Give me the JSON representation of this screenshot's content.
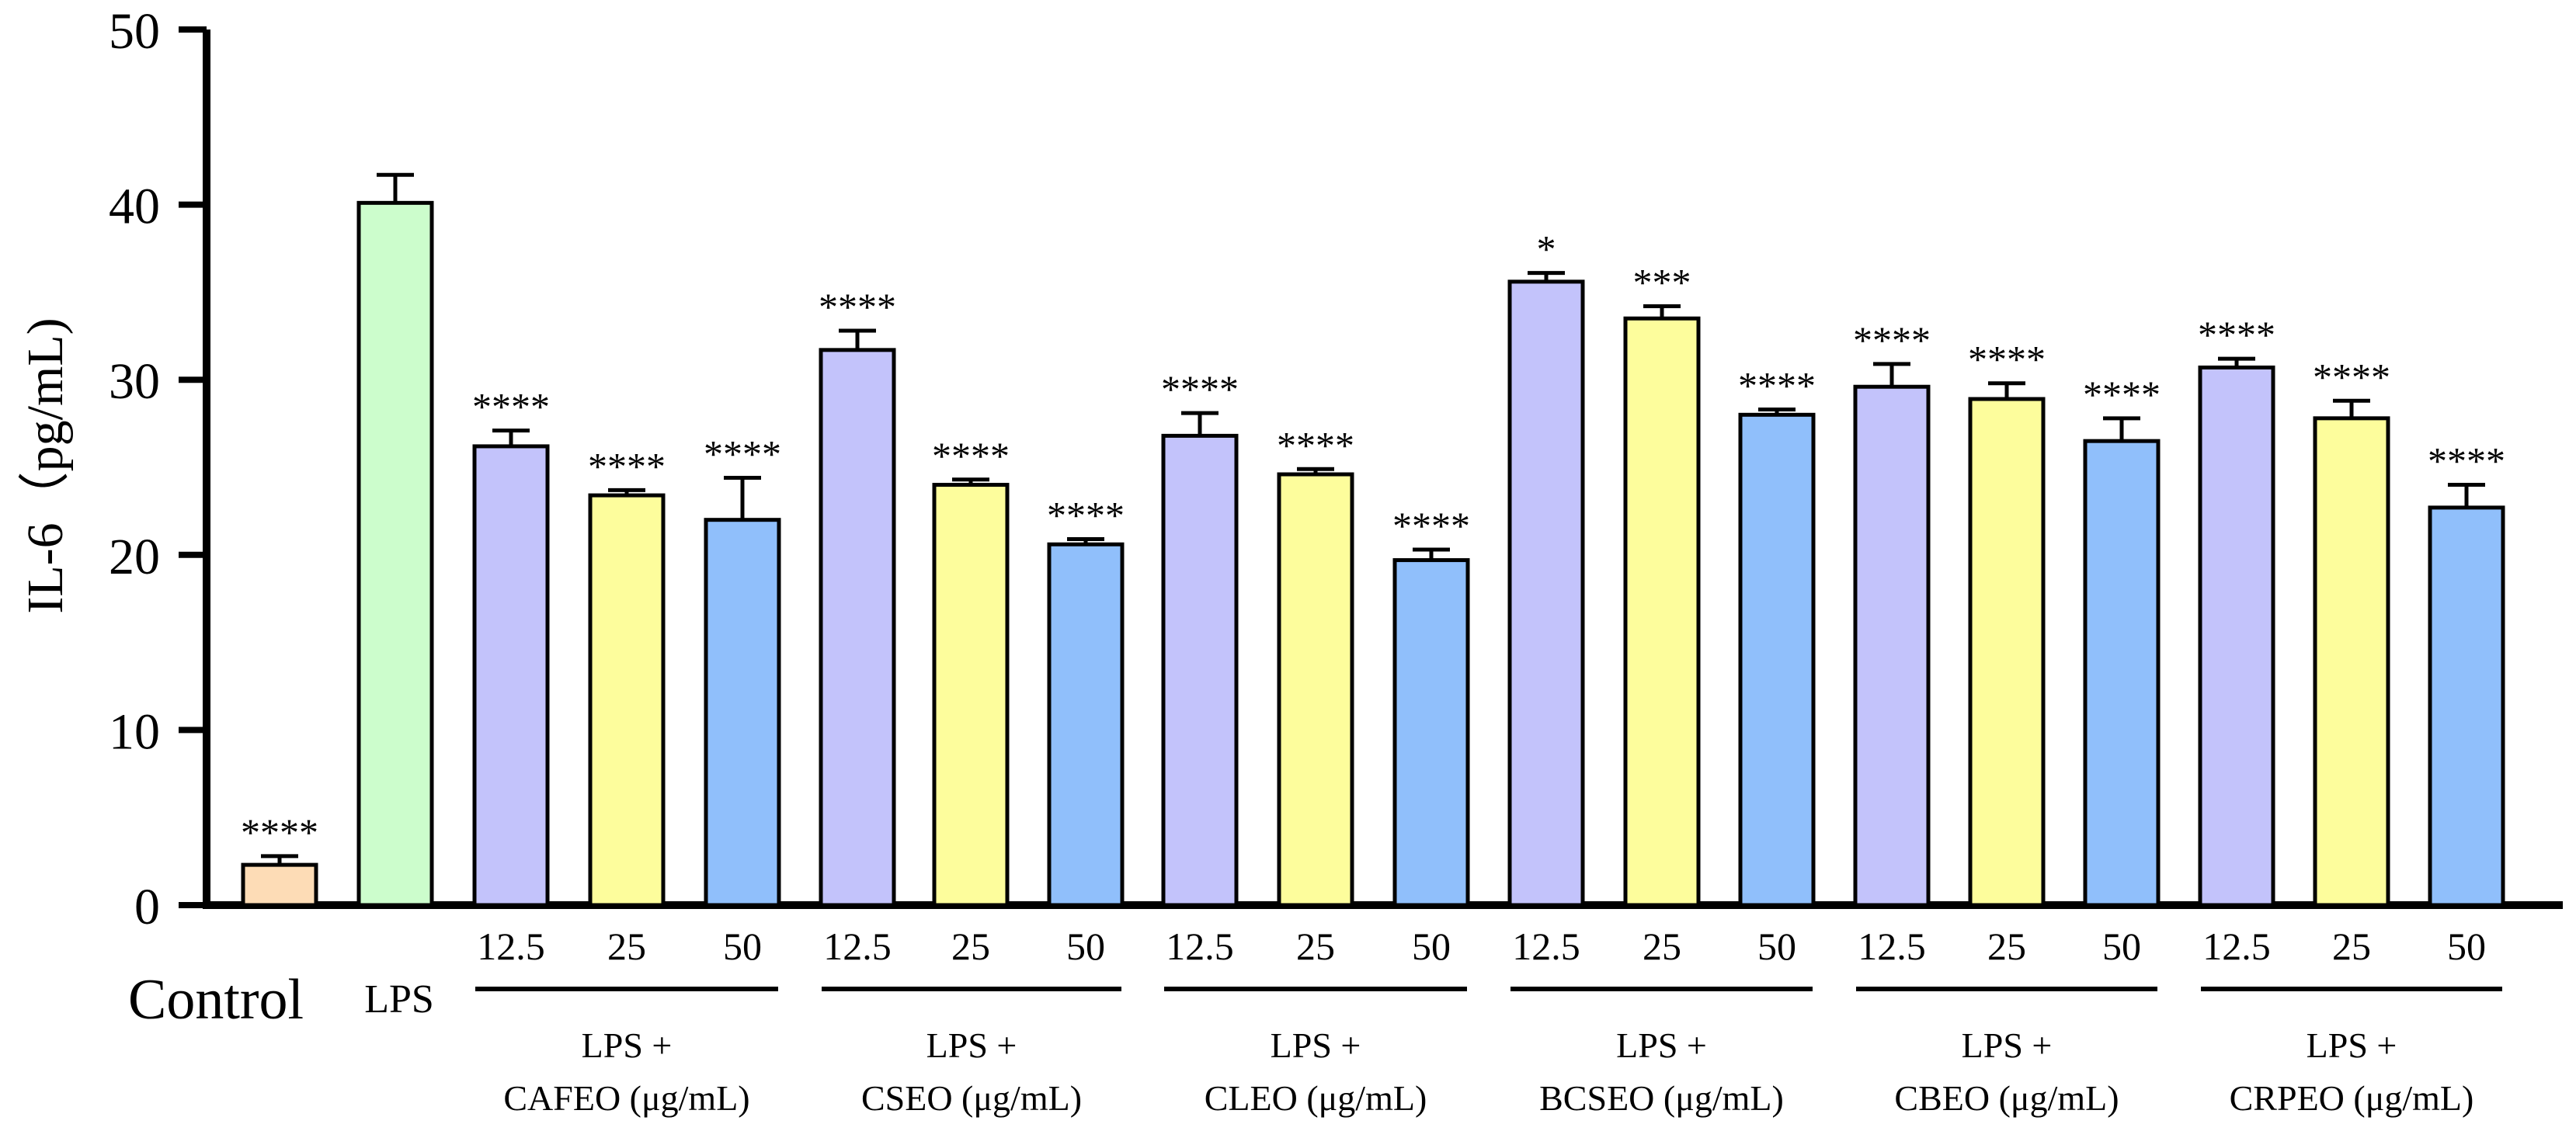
{
  "chart_data": {
    "type": "bar",
    "ylabel": "IL-6（pg/mL)",
    "ylim": [
      0,
      50
    ],
    "yticks": [
      0,
      10,
      20,
      30,
      40,
      50
    ],
    "colors": {
      "control": "#fddcb6",
      "lps": "#ccfdcc",
      "c12_5": "#c3c3fb",
      "c25": "#fdfd9c",
      "c50": "#90bffb",
      "stroke": "#000000"
    },
    "categories": [
      "Control",
      "LPS",
      "12.5",
      "25",
      "50",
      "12.5",
      "25",
      "50",
      "12.5",
      "25",
      "50",
      "12.5",
      "25",
      "50",
      "12.5",
      "25",
      "50",
      "12.5",
      "25",
      "50"
    ],
    "bars": [
      {
        "category": "Control",
        "value": 2.3,
        "error": 0.5,
        "sig": "****",
        "color_key": "control"
      },
      {
        "category": "LPS",
        "value": 40.1,
        "error": 1.6,
        "sig": "",
        "color_key": "lps"
      },
      {
        "category": "12.5",
        "value": 26.2,
        "error": 0.9,
        "sig": "****",
        "color_key": "c12_5"
      },
      {
        "category": "25",
        "value": 23.4,
        "error": 0.3,
        "sig": "****",
        "color_key": "c25"
      },
      {
        "category": "50",
        "value": 22.0,
        "error": 2.4,
        "sig": "****",
        "color_key": "c50"
      },
      {
        "category": "12.5",
        "value": 31.7,
        "error": 1.1,
        "sig": "****",
        "color_key": "c12_5"
      },
      {
        "category": "25",
        "value": 24.0,
        "error": 0.3,
        "sig": "****",
        "color_key": "c25"
      },
      {
        "category": "50",
        "value": 20.6,
        "error": 0.3,
        "sig": "****",
        "color_key": "c50"
      },
      {
        "category": "12.5",
        "value": 26.8,
        "error": 1.3,
        "sig": "****",
        "color_key": "c12_5"
      },
      {
        "category": "25",
        "value": 24.6,
        "error": 0.3,
        "sig": "****",
        "color_key": "c25"
      },
      {
        "category": "50",
        "value": 19.7,
        "error": 0.6,
        "sig": "****",
        "color_key": "c50"
      },
      {
        "category": "12.5",
        "value": 35.6,
        "error": 0.5,
        "sig": "*",
        "color_key": "c12_5"
      },
      {
        "category": "25",
        "value": 33.5,
        "error": 0.7,
        "sig": "***",
        "color_key": "c25"
      },
      {
        "category": "50",
        "value": 28.0,
        "error": 0.3,
        "sig": "****",
        "color_key": "c50"
      },
      {
        "category": "12.5",
        "value": 29.6,
        "error": 1.3,
        "sig": "****",
        "color_key": "c12_5"
      },
      {
        "category": "25",
        "value": 28.9,
        "error": 0.9,
        "sig": "****",
        "color_key": "c25"
      },
      {
        "category": "50",
        "value": 26.5,
        "error": 1.3,
        "sig": "****",
        "color_key": "c50"
      },
      {
        "category": "12.5",
        "value": 30.7,
        "error": 0.5,
        "sig": "****",
        "color_key": "c12_5"
      },
      {
        "category": "25",
        "value": 27.8,
        "error": 1.0,
        "sig": "****",
        "color_key": "c25"
      },
      {
        "category": "50",
        "value": 22.7,
        "error": 1.3,
        "sig": "****",
        "color_key": "c50"
      }
    ],
    "groups": [
      {
        "line1": "LPS +",
        "line2": "CAFEO (μg/mL)",
        "start": 2,
        "end": 4
      },
      {
        "line1": "LPS +",
        "line2": "CSEO (μg/mL)",
        "start": 5,
        "end": 7
      },
      {
        "line1": "LPS +",
        "line2": "CLEO (μg/mL)",
        "start": 8,
        "end": 10
      },
      {
        "line1": "LPS +",
        "line2": "BCSEO (μg/mL)",
        "start": 11,
        "end": 13
      },
      {
        "line1": "LPS +",
        "line2": "CBEO (μg/mL)",
        "start": 14,
        "end": 16
      },
      {
        "line1": "LPS +",
        "line2": "CRPEO (μg/mL)",
        "start": 17,
        "end": 19
      }
    ]
  }
}
